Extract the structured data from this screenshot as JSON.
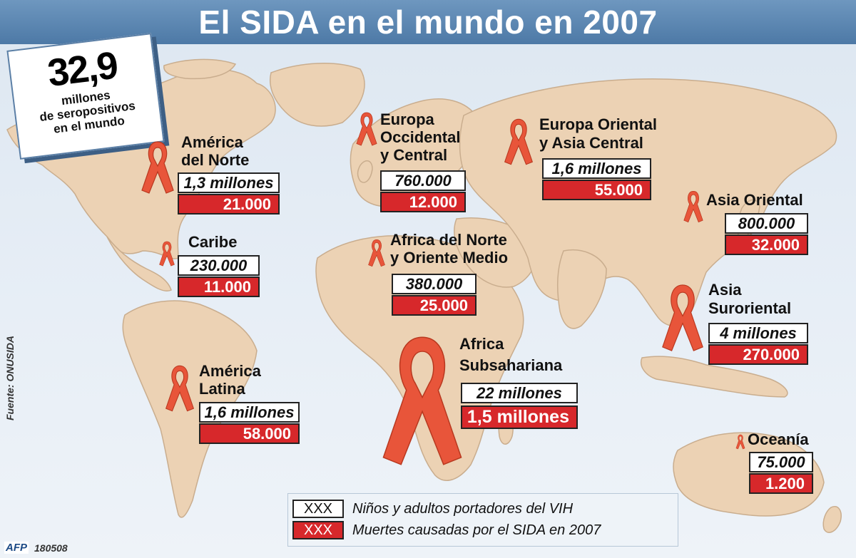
{
  "title": "El SIDA en el mundo en 2007",
  "total": {
    "number": "32,9",
    "line1": "millones",
    "line2": "de seropositivos",
    "line3": "en el mundo"
  },
  "regions": [
    {
      "name_lines": [
        "América",
        "del Norte"
      ],
      "infected": "1,3 millones",
      "deaths": "21.000"
    },
    {
      "name_lines": [
        "Caribe"
      ],
      "infected": "230.000",
      "deaths": "11.000"
    },
    {
      "name_lines": [
        "América",
        "Latina"
      ],
      "infected": "1,6 millones",
      "deaths": "58.000"
    },
    {
      "name_lines": [
        "Europa",
        "Occidental",
        "y Central"
      ],
      "infected": "760.000",
      "deaths": "12.000"
    },
    {
      "name_lines": [
        "Europa Oriental",
        "y Asia Central"
      ],
      "infected": "1,6 millones",
      "deaths": "55.000"
    },
    {
      "name_lines": [
        "Africa del Norte",
        "y Oriente Medio"
      ],
      "infected": "380.000",
      "deaths": "25.000"
    },
    {
      "name_lines": [
        "Africa",
        "Subsahariana"
      ],
      "infected": "22 millones",
      "deaths": "1,5 millones"
    },
    {
      "name_lines": [
        "Asia Oriental"
      ],
      "infected": "800.000",
      "deaths": "32.000"
    },
    {
      "name_lines": [
        "Asia",
        "Suroriental"
      ],
      "infected": "4 millones",
      "deaths": "270.000"
    },
    {
      "name_lines": [
        "Oceanía"
      ],
      "infected": "75.000",
      "deaths": "1.200"
    }
  ],
  "legend": {
    "placeholder": "XXX",
    "infected_label": "Niños y adultos portadores del VIH",
    "deaths_label": "Muertes causadas por el SIDA en 2007"
  },
  "source": "Fuente: ONUSIDA",
  "agency": "AFP",
  "code": "180508",
  "colors": {
    "land": "#ecd2b4",
    "ocean": "#e3ebf4",
    "header": "#5a84b0",
    "ribbon": "#e8553a",
    "deaths": "#d7282b"
  }
}
